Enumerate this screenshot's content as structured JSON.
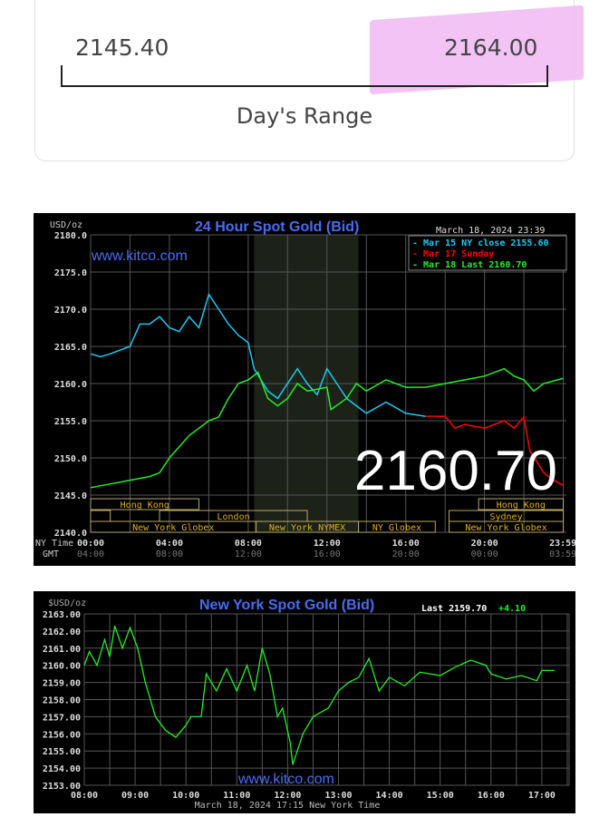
{
  "days_range": {
    "low": "2145.40",
    "high": "2164.00",
    "label": "Day's Range",
    "highlight_color": "#f0b8f2"
  },
  "chart_data": [
    {
      "type": "line",
      "title": "24 Hour Spot Gold (Bid)",
      "unit": "USD/oz",
      "timestamp": "March 18, 2024 23:39",
      "watermark": "www.kitco.com",
      "big_value": "2160.70",
      "ylim": [
        2140,
        2180
      ],
      "y_ticks": [
        "2180.0",
        "2175.0",
        "2170.0",
        "2165.0",
        "2160.0",
        "2155.0",
        "2150.0",
        "2145.0",
        "2140.0"
      ],
      "xlim": [
        0,
        24
      ],
      "x_ticks_ny": [
        "00:00",
        "04:00",
        "08:00",
        "12:00",
        "16:00",
        "20:00",
        "23:59"
      ],
      "x_ticks_gmt": [
        "04:00",
        "08:00",
        "12:00",
        "16:00",
        "20:00",
        "00:00",
        "03:59"
      ],
      "x_label_ny": "NY Time",
      "x_label_gmt": "GMT",
      "sessions": [
        {
          "label": "Hong Kong",
          "row": 0,
          "from": 0,
          "to": 5.5
        },
        {
          "label": "",
          "row": 1,
          "from": 0,
          "to": 1
        },
        {
          "label": "London",
          "row": 1,
          "from": 3.5,
          "to": 11
        },
        {
          "label": "New York Globex",
          "row": 2,
          "from": 0,
          "to": 8.4
        },
        {
          "label": "New York NYMEX",
          "row": 2,
          "from": 8.4,
          "to": 13.6
        },
        {
          "label": "NY Globex",
          "row": 2,
          "from": 13.6,
          "to": 17.5
        },
        {
          "label": "Hong Kong",
          "row": 0,
          "from": 19.7,
          "to": 24
        },
        {
          "label": "Sydney",
          "row": 1,
          "from": 18.2,
          "to": 24
        },
        {
          "label": "New York Globex",
          "row": 2,
          "from": 18.2,
          "to": 24
        }
      ],
      "series": [
        {
          "name": "Mar 15 NY close 2155.60",
          "color": "#1ec8f0",
          "points": [
            [
              0,
              2164
            ],
            [
              0.5,
              2163.6
            ],
            [
              1,
              2164
            ],
            [
              1.5,
              2164.5
            ],
            [
              2,
              2165
            ],
            [
              2.5,
              2168
            ],
            [
              3,
              2168
            ],
            [
              3.5,
              2169
            ],
            [
              4,
              2167.5
            ],
            [
              4.5,
              2167
            ],
            [
              5,
              2169
            ],
            [
              5.5,
              2167.5
            ],
            [
              6,
              2172
            ],
            [
              6.5,
              2170
            ],
            [
              7,
              2168
            ],
            [
              7.5,
              2166.5
            ],
            [
              8,
              2165.5
            ],
            [
              8.3,
              2162
            ],
            [
              9,
              2159
            ],
            [
              9.5,
              2158
            ],
            [
              10,
              2160
            ],
            [
              10.5,
              2162
            ],
            [
              11,
              2160
            ],
            [
              11.5,
              2158.5
            ],
            [
              12,
              2162
            ],
            [
              12.5,
              2160
            ],
            [
              13,
              2158
            ],
            [
              13.5,
              2157
            ],
            [
              14,
              2156
            ],
            [
              15,
              2157.5
            ],
            [
              16,
              2156
            ],
            [
              17,
              2155.6
            ]
          ]
        },
        {
          "name": "Mar 17 Sunday",
          "color": "#ff0000",
          "points": [
            [
              17,
              2155.6
            ],
            [
              18,
              2155.6
            ],
            [
              18.5,
              2154
            ],
            [
              19,
              2154.5
            ],
            [
              20,
              2154
            ],
            [
              21,
              2155
            ],
            [
              21.5,
              2154
            ],
            [
              22,
              2155.5
            ],
            [
              22.3,
              2151
            ],
            [
              23,
              2148
            ],
            [
              23.5,
              2147
            ],
            [
              24,
              2146.3
            ]
          ]
        },
        {
          "name": "Mar 18 Last 2160.70",
          "color": "#22ee22",
          "points": [
            [
              0,
              2146
            ],
            [
              1,
              2146.5
            ],
            [
              2,
              2147
            ],
            [
              3,
              2147.5
            ],
            [
              3.5,
              2148
            ],
            [
              4,
              2150
            ],
            [
              4.5,
              2151.5
            ],
            [
              5,
              2153
            ],
            [
              6,
              2155
            ],
            [
              6.5,
              2155.5
            ],
            [
              7,
              2158
            ],
            [
              7.5,
              2160
            ],
            [
              8,
              2160.5
            ],
            [
              8.5,
              2161.5
            ],
            [
              9,
              2158
            ],
            [
              9.5,
              2157
            ],
            [
              10,
              2158
            ],
            [
              10.5,
              2160
            ],
            [
              11,
              2159
            ],
            [
              12,
              2159.5
            ],
            [
              12.2,
              2156.5
            ],
            [
              13,
              2158
            ],
            [
              13.5,
              2160
            ],
            [
              14,
              2159
            ],
            [
              15,
              2160.5
            ],
            [
              16,
              2159.5
            ],
            [
              17,
              2159.5
            ],
            [
              18,
              2160
            ],
            [
              19,
              2160.5
            ],
            [
              20,
              2161
            ],
            [
              21,
              2162
            ],
            [
              21.5,
              2161
            ],
            [
              22,
              2160.5
            ],
            [
              22.5,
              2159
            ],
            [
              23,
              2160
            ],
            [
              24,
              2160.7
            ]
          ]
        }
      ]
    },
    {
      "type": "line",
      "title": "New York Spot Gold (Bid)",
      "unit": "$USD/oz",
      "last_label": "Last 2159.70",
      "change": "+4.10",
      "change_color": "#22ee22",
      "watermark": "www.kitco.com",
      "footer": "March 18, 2024 17:15 New York Time",
      "ylim": [
        2153,
        2163
      ],
      "y_ticks": [
        "2163.00",
        "2162.00",
        "2161.00",
        "2160.00",
        "2159.00",
        "2158.00",
        "2157.00",
        "2156.00",
        "2155.00",
        "2154.00",
        "2153.00"
      ],
      "xlim": [
        8,
        17.55
      ],
      "x_ticks": [
        "08:00",
        "09:00",
        "10:00",
        "11:00",
        "12:00",
        "13:00",
        "14:00",
        "15:00",
        "16:00",
        "17:00"
      ],
      "series": [
        {
          "color": "#22ee22",
          "points": [
            [
              8,
              2160
            ],
            [
              8.1,
              2160.8
            ],
            [
              8.25,
              2160
            ],
            [
              8.4,
              2161.5
            ],
            [
              8.5,
              2160.5
            ],
            [
              8.6,
              2162.3
            ],
            [
              8.75,
              2161
            ],
            [
              8.9,
              2162.2
            ],
            [
              9.05,
              2161
            ],
            [
              9.2,
              2159
            ],
            [
              9.4,
              2157
            ],
            [
              9.6,
              2156.2
            ],
            [
              9.8,
              2155.8
            ],
            [
              10,
              2156.5
            ],
            [
              10.1,
              2157
            ],
            [
              10.3,
              2157
            ],
            [
              10.4,
              2159.5
            ],
            [
              10.6,
              2158.5
            ],
            [
              10.8,
              2159.8
            ],
            [
              11,
              2158.5
            ],
            [
              11.2,
              2160
            ],
            [
              11.35,
              2158.5
            ],
            [
              11.5,
              2161
            ],
            [
              11.65,
              2159.5
            ],
            [
              11.8,
              2157
            ],
            [
              11.9,
              2157.5
            ],
            [
              12.05,
              2155.5
            ],
            [
              12.1,
              2154.2
            ],
            [
              12.3,
              2156
            ],
            [
              12.5,
              2157
            ],
            [
              12.8,
              2157.5
            ],
            [
              13,
              2158.5
            ],
            [
              13.2,
              2159
            ],
            [
              13.4,
              2159.3
            ],
            [
              13.6,
              2160.4
            ],
            [
              13.8,
              2158.5
            ],
            [
              14,
              2159.3
            ],
            [
              14.3,
              2158.8
            ],
            [
              14.6,
              2159.6
            ],
            [
              15,
              2159.4
            ],
            [
              15.3,
              2159.9
            ],
            [
              15.6,
              2160.3
            ],
            [
              15.9,
              2160
            ],
            [
              16,
              2159.5
            ],
            [
              16.3,
              2159.2
            ],
            [
              16.6,
              2159.4
            ],
            [
              16.9,
              2159.1
            ],
            [
              17,
              2159.7
            ],
            [
              17.25,
              2159.7
            ]
          ]
        }
      ]
    }
  ]
}
